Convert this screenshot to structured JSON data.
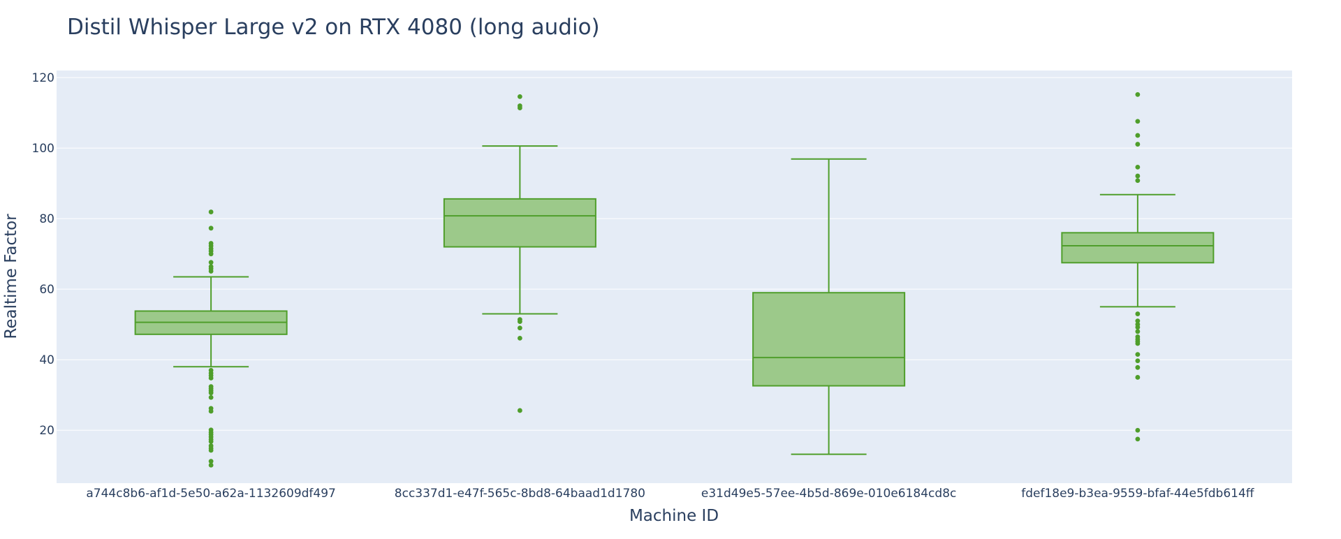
{
  "chart_data": {
    "type": "box",
    "title": "Distil Whisper Large v2 on RTX 4080 (long audio)",
    "xlabel": "Machine ID",
    "ylabel": "Realtime Factor",
    "ylim": [
      5,
      122
    ],
    "yticks": [
      20,
      40,
      60,
      80,
      100,
      120
    ],
    "grid": true,
    "legend": "none",
    "colors": {
      "box_fill": "#9cc98a",
      "box_line": "#4f9e2b",
      "plot_bg": "#e5ecf6",
      "grid": "#ffffff",
      "text": "#2a3f5f"
    },
    "categories": [
      "a744c8b6-af1d-5e50-a62a-1132609df497",
      "8cc337d1-e47f-565c-8bd8-64baad1d1780",
      "e31d49e5-57ee-4b5d-869e-010e6184cd8c",
      "fdef18e9-b3ea-9559-bfaf-44e5fdb614ff"
    ],
    "boxes": [
      {
        "category": "a744c8b6-af1d-5e50-a62a-1132609df497",
        "lower_whisker": 38.0,
        "q1": 47.2,
        "median": 50.6,
        "q3": 53.8,
        "upper_whisker": 63.5,
        "outliers": [
          81.9,
          77.3,
          73.0,
          72.3,
          71.5,
          70.8,
          70.0,
          67.6,
          66.4,
          65.8,
          65.1,
          37.0,
          36.2,
          35.5,
          34.8,
          32.4,
          31.8,
          31.2,
          30.6,
          29.3,
          26.2,
          25.4,
          20.1,
          19.4,
          18.8,
          18.1,
          17.4,
          16.8,
          15.6,
          14.9,
          14.3,
          11.2,
          10.1
        ]
      },
      {
        "category": "8cc337d1-e47f-565c-8bd8-64baad1d1780",
        "lower_whisker": 53.0,
        "q1": 72.0,
        "median": 80.8,
        "q3": 85.6,
        "upper_whisker": 100.6,
        "outliers": [
          114.6,
          112.0,
          111.4,
          51.4,
          50.8,
          49.0,
          46.1,
          25.6
        ]
      },
      {
        "category": "e31d49e5-57ee-4b5d-869e-010e6184cd8c",
        "lower_whisker": 13.2,
        "q1": 32.6,
        "median": 40.6,
        "q3": 59.0,
        "upper_whisker": 96.9,
        "outliers": []
      },
      {
        "category": "fdef18e9-b3ea-9559-bfaf-44e5fdb614ff",
        "lower_whisker": 55.0,
        "q1": 67.5,
        "median": 72.3,
        "q3": 76.0,
        "upper_whisker": 86.8,
        "outliers": [
          115.2,
          107.6,
          103.6,
          101.1,
          94.6,
          92.1,
          90.8,
          53.0,
          51.0,
          50.0,
          49.2,
          48.0,
          46.5,
          45.8,
          45.2,
          44.6,
          41.5,
          39.7,
          37.8,
          35.0,
          20.0,
          17.5
        ]
      }
    ]
  }
}
